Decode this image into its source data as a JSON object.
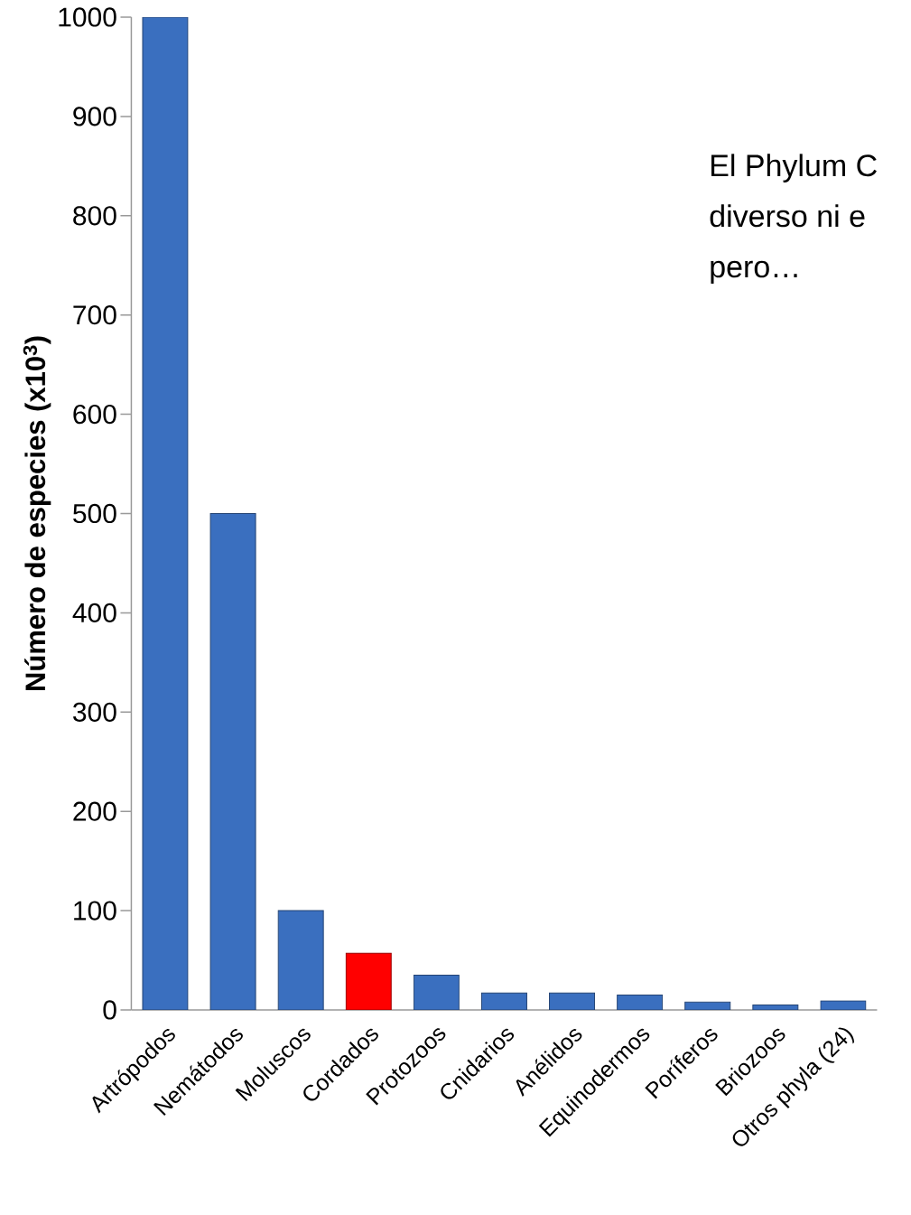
{
  "chart_data": {
    "type": "bar",
    "ylabel": "**Número de especies (x10$^{3}$)**",
    "categories": [
      "Artrópodos",
      "Nemátodos",
      "Moluscos",
      "Cordados",
      "Protozoos",
      "Cnidarios",
      "Anélidos",
      "Equinodermos",
      "Poríferos",
      "Briozoos",
      "Otros phyla (24)"
    ],
    "values": [
      1000,
      500,
      100,
      57,
      35,
      17,
      17,
      15,
      8,
      5,
      9
    ],
    "colors": [
      "#3a6fbf",
      "#3a6fbf",
      "#3a6fbf",
      "#ff0000",
      "#3a6fbf",
      "#3a6fbf",
      "#3a6fbf",
      "#3a6fbf",
      "#3a6fbf",
      "#3a6fbf",
      "#3a6fbf"
    ],
    "ylim": [
      0,
      1000
    ],
    "yticks": [
      0,
      100,
      200,
      300,
      400,
      500,
      600,
      700,
      800,
      900,
      1000
    ],
    "annotations": [
      "El Phylum C",
      "diverso ni  e",
      "pero…"
    ]
  }
}
